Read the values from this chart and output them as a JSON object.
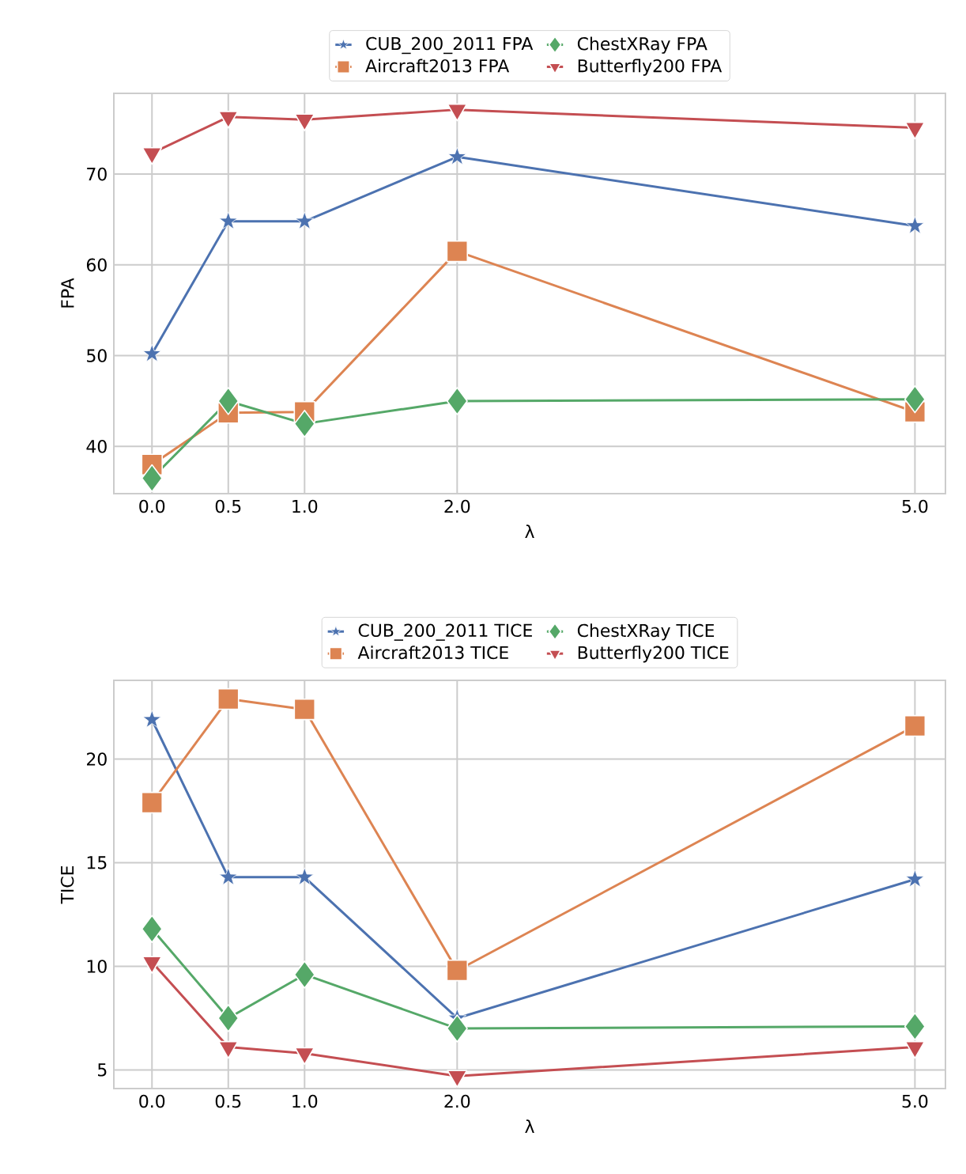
{
  "chart_data": [
    {
      "type": "line",
      "xlabel": "λ",
      "ylabel": "FPA",
      "x": [
        0,
        0.5,
        1,
        2,
        5
      ],
      "xlim": [
        -0.25,
        5.2
      ],
      "ylim": [
        34.8,
        78.9
      ],
      "xticks": [
        {
          "value": 0,
          "label": "0.0"
        },
        {
          "value": 0.5,
          "label": "0.5"
        },
        {
          "value": 1,
          "label": "1.0"
        },
        {
          "value": 2,
          "label": "2.0"
        },
        {
          "value": 5,
          "label": "5.0"
        }
      ],
      "yticks": [
        40,
        50,
        60,
        70
      ],
      "grid": true,
      "legend": "top",
      "line_style": "solid",
      "series": [
        {
          "name": "CUB_200_2011 FPA",
          "color": "#4c72b0",
          "marker": "star",
          "values": [
            50.2,
            64.8,
            64.8,
            71.9,
            64.3
          ]
        },
        {
          "name": "Aircraft2013 FPA",
          "color": "#dd8452",
          "marker": "square",
          "values": [
            38.0,
            43.7,
            43.8,
            61.5,
            43.8
          ]
        },
        {
          "name": "ChestXRay FPA",
          "color": "#55a868",
          "marker": "diamond",
          "values": [
            36.5,
            45.0,
            42.5,
            45.0,
            45.2
          ]
        },
        {
          "name": "Butterfly200 FPA",
          "color": "#c44e52",
          "marker": "triangle",
          "values": [
            72.3,
            76.3,
            76.0,
            77.1,
            75.1
          ]
        }
      ]
    },
    {
      "type": "line",
      "xlabel": "λ",
      "ylabel": "TICE",
      "x": [
        0,
        0.5,
        1,
        2,
        5
      ],
      "xlim": [
        -0.25,
        5.2
      ],
      "ylim": [
        4.1,
        23.8
      ],
      "xticks": [
        {
          "value": 0,
          "label": "0.0"
        },
        {
          "value": 0.5,
          "label": "0.5"
        },
        {
          "value": 1,
          "label": "1.0"
        },
        {
          "value": 2,
          "label": "2.0"
        },
        {
          "value": 5,
          "label": "5.0"
        }
      ],
      "yticks": [
        5,
        10,
        15,
        20
      ],
      "grid": true,
      "legend": "top",
      "line_style": "solid",
      "series": [
        {
          "name": "CUB_200_2011 TICE",
          "color": "#4c72b0",
          "marker": "star",
          "values": [
            21.9,
            14.3,
            14.3,
            7.5,
            14.2
          ]
        },
        {
          "name": "Aircraft2013 TICE",
          "color": "#dd8452",
          "marker": "square",
          "values": [
            17.9,
            22.9,
            22.4,
            9.8,
            21.6
          ]
        },
        {
          "name": "ChestXRay TICE",
          "color": "#55a868",
          "marker": "diamond",
          "values": [
            11.8,
            7.5,
            9.6,
            7.0,
            7.1
          ]
        },
        {
          "name": "Butterfly200 TICE",
          "color": "#c44e52",
          "marker": "triangle",
          "values": [
            10.2,
            6.1,
            5.8,
            4.7,
            6.1
          ]
        }
      ]
    }
  ]
}
